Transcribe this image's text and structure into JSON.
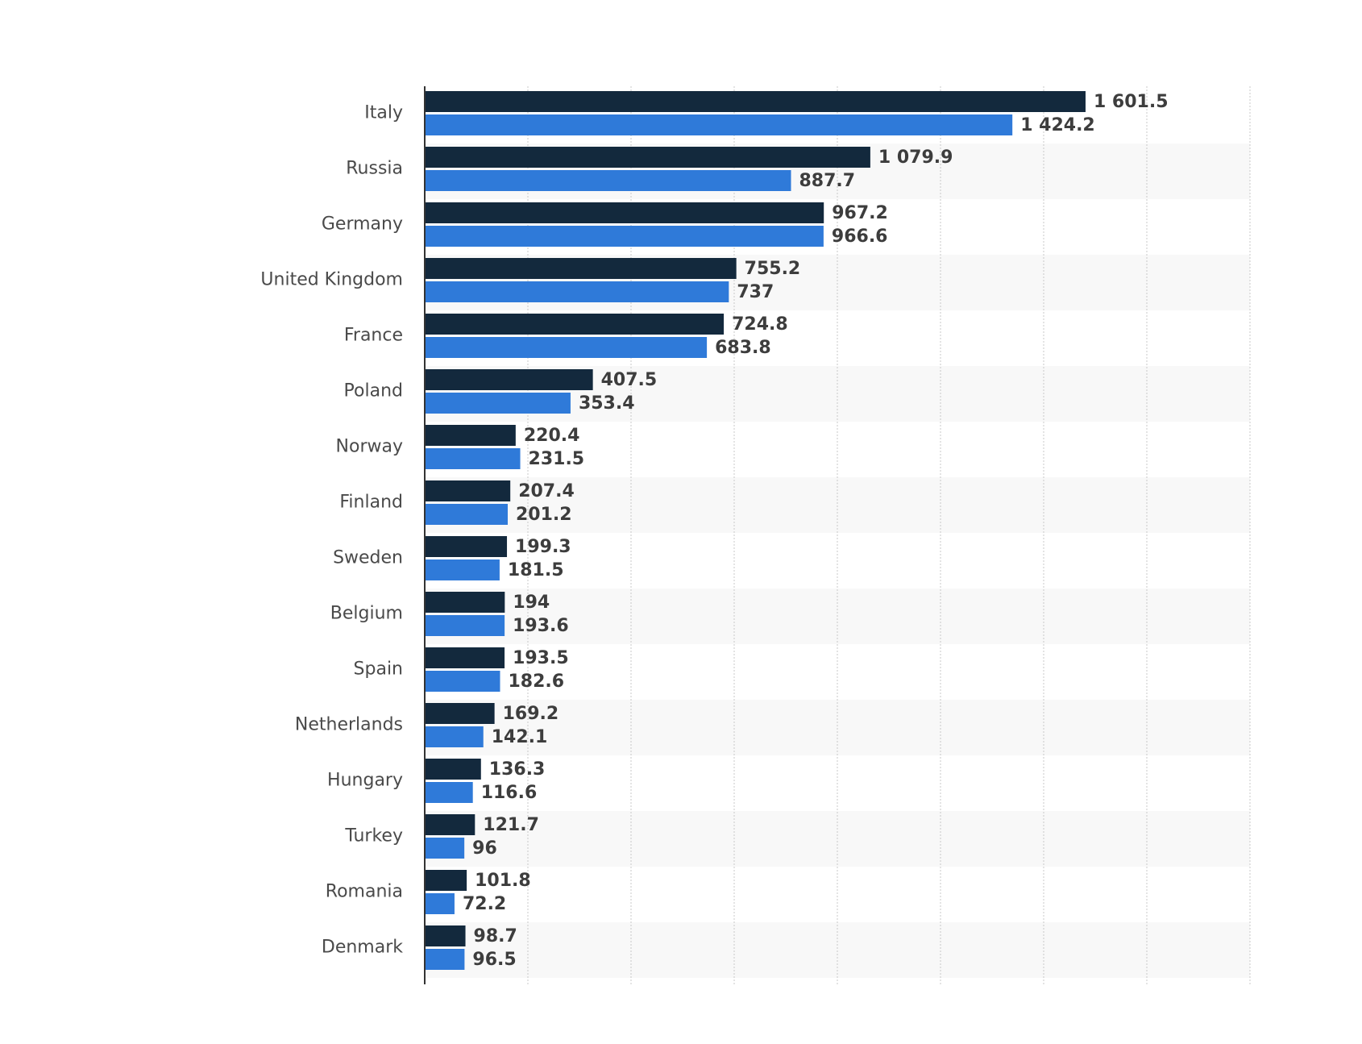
{
  "chart_data": {
    "type": "bar",
    "orientation": "horizontal",
    "categories": [
      "Italy",
      "Russia",
      "Germany",
      "United Kingdom",
      "France",
      "Poland",
      "Norway",
      "Finland",
      "Sweden",
      "Belgium",
      "Spain",
      "Netherlands",
      "Hungary",
      "Turkey",
      "Romania",
      "Denmark"
    ],
    "series": [
      {
        "color": "#13293d",
        "values": [
          1601.5,
          1079.9,
          967.2,
          755.2,
          724.8,
          407.5,
          220.4,
          207.4,
          199.3,
          194,
          193.5,
          169.2,
          136.3,
          121.7,
          101.8,
          98.7
        ],
        "labels": [
          "1 601.5",
          "1 079.9",
          "967.2",
          "755.2",
          "724.8",
          "407.5",
          "220.4",
          "207.4",
          "199.3",
          "194",
          "193.5",
          "169.2",
          "136.3",
          "121.7",
          "101.8",
          "98.7"
        ]
      },
      {
        "color": "#2f7ad9",
        "values": [
          1424.2,
          887.7,
          966.6,
          737,
          683.8,
          353.4,
          231.5,
          201.2,
          181.5,
          193.6,
          182.6,
          142.1,
          116.6,
          96,
          72.2,
          96.5
        ],
        "labels": [
          "1 424.2",
          "887.7",
          "966.6",
          "737",
          "683.8",
          "353.4",
          "231.5",
          "201.2",
          "181.5",
          "193.6",
          "182.6",
          "142.1",
          "116.6",
          "96",
          "72.2",
          "96.5"
        ]
      }
    ],
    "xlim": [
      0,
      2000
    ],
    "x_grid_step": 250,
    "grid": true,
    "row_stripes": true,
    "legend": "none"
  }
}
